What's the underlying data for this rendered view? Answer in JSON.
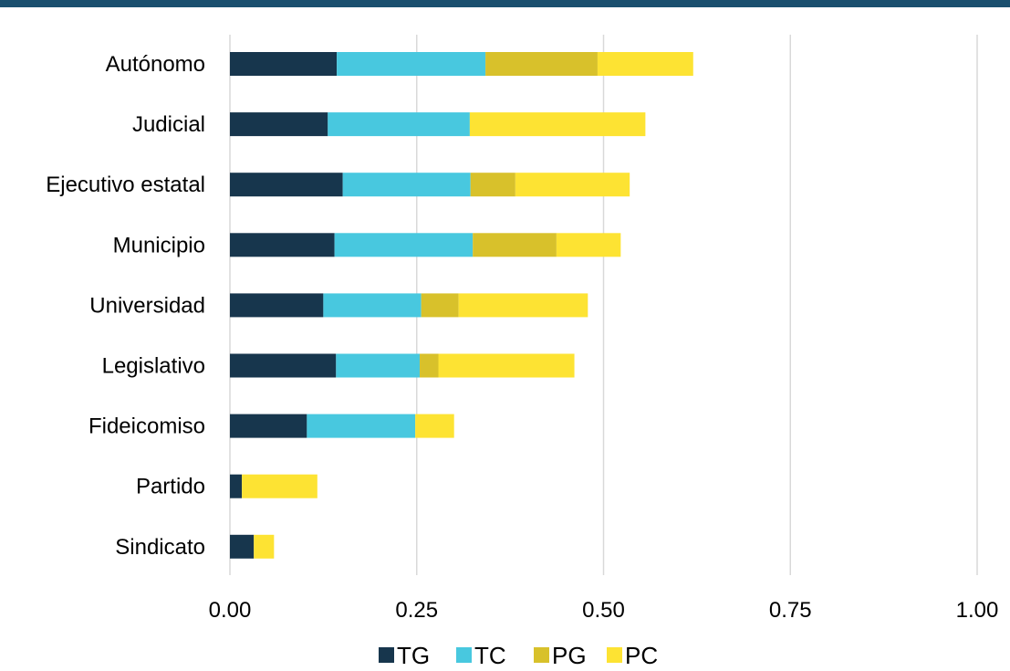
{
  "colors": {
    "top_bar": "#1a4f6e",
    "grid": "#d9d9d9",
    "TG": "#17364d",
    "TC": "#48c8df",
    "PG": "#d8c12b",
    "PC": "#fde333"
  },
  "chart_data": {
    "type": "bar",
    "orientation": "horizontal",
    "stacked": true,
    "title": "",
    "xlabel": "",
    "ylabel": "",
    "xlim": [
      0,
      1
    ],
    "x_ticks": [
      "0.00",
      "0.25",
      "0.50",
      "0.75",
      "1.00"
    ],
    "grid": true,
    "legend_position": "bottom",
    "categories": [
      "Autónomo",
      "Judicial",
      "Ejecutivo estatal",
      "Municipio",
      "Universidad",
      "Legislativo",
      "Fideicomiso",
      "Partido",
      "Sindicato"
    ],
    "series": [
      {
        "name": "TG",
        "color_key": "TG",
        "values": [
          0.143,
          0.131,
          0.151,
          0.14,
          0.125,
          0.142,
          0.103,
          0.016,
          0.032
        ]
      },
      {
        "name": "TC",
        "color_key": "TC",
        "values": [
          0.199,
          0.19,
          0.171,
          0.185,
          0.131,
          0.112,
          0.145,
          0.0,
          0.0
        ]
      },
      {
        "name": "PG",
        "color_key": "PG",
        "values": [
          0.15,
          0.0,
          0.06,
          0.112,
          0.05,
          0.025,
          0.0,
          0.0,
          0.0
        ]
      },
      {
        "name": "PC",
        "color_key": "PC",
        "values": [
          0.128,
          0.235,
          0.153,
          0.086,
          0.173,
          0.182,
          0.052,
          0.101,
          0.027
        ]
      }
    ]
  }
}
